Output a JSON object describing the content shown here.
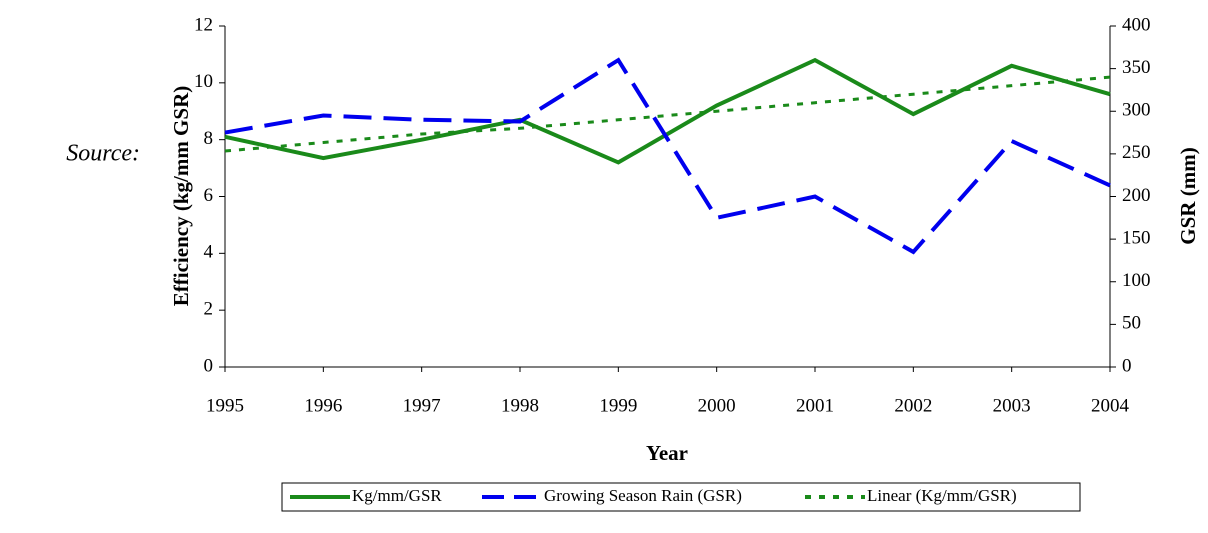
{
  "chart_data": {
    "type": "line",
    "annotation": "Source:",
    "x_label": "Year",
    "y_label": "Efficiency (kg/mm GSR)",
    "y2_label": "GSR (mm)",
    "x": [
      1995,
      1996,
      1997,
      1998,
      1999,
      2000,
      2001,
      2002,
      2003,
      2004
    ],
    "xlim": [
      1995,
      2004
    ],
    "xticks": [
      1995,
      1996,
      1997,
      1998,
      1999,
      2000,
      2001,
      2002,
      2003,
      2004
    ],
    "ylim": [
      0,
      12
    ],
    "yticks": [
      0,
      2,
      4,
      6,
      8,
      10,
      12
    ],
    "y2lim": [
      0,
      400
    ],
    "y2ticks": [
      0,
      50,
      100,
      150,
      200,
      250,
      300,
      350,
      400
    ],
    "grid": false,
    "legend": "bottom",
    "series": [
      {
        "name": "Kg/mm/GSR",
        "color": "#1a8a1a",
        "line_style": "solid",
        "values": [
          8.1,
          7.35,
          8.0,
          8.7,
          7.2,
          9.2,
          10.8,
          8.9,
          10.6,
          9.6
        ]
      },
      {
        "name": "Growing Season Rain (GSR)",
        "color": "#0000ee",
        "line_style": "dashed",
        "axis": "y2",
        "values": [
          275,
          295,
          290,
          288,
          360,
          175,
          200,
          135,
          265,
          213
        ]
      },
      {
        "name": "Linear (Kg/mm/GSR)",
        "color": "#1a8a1a",
        "line_style": "dotted",
        "values": [
          7.6,
          7.9,
          8.2,
          8.4,
          8.7,
          9.0,
          9.3,
          9.6,
          9.9,
          10.2
        ]
      }
    ]
  }
}
